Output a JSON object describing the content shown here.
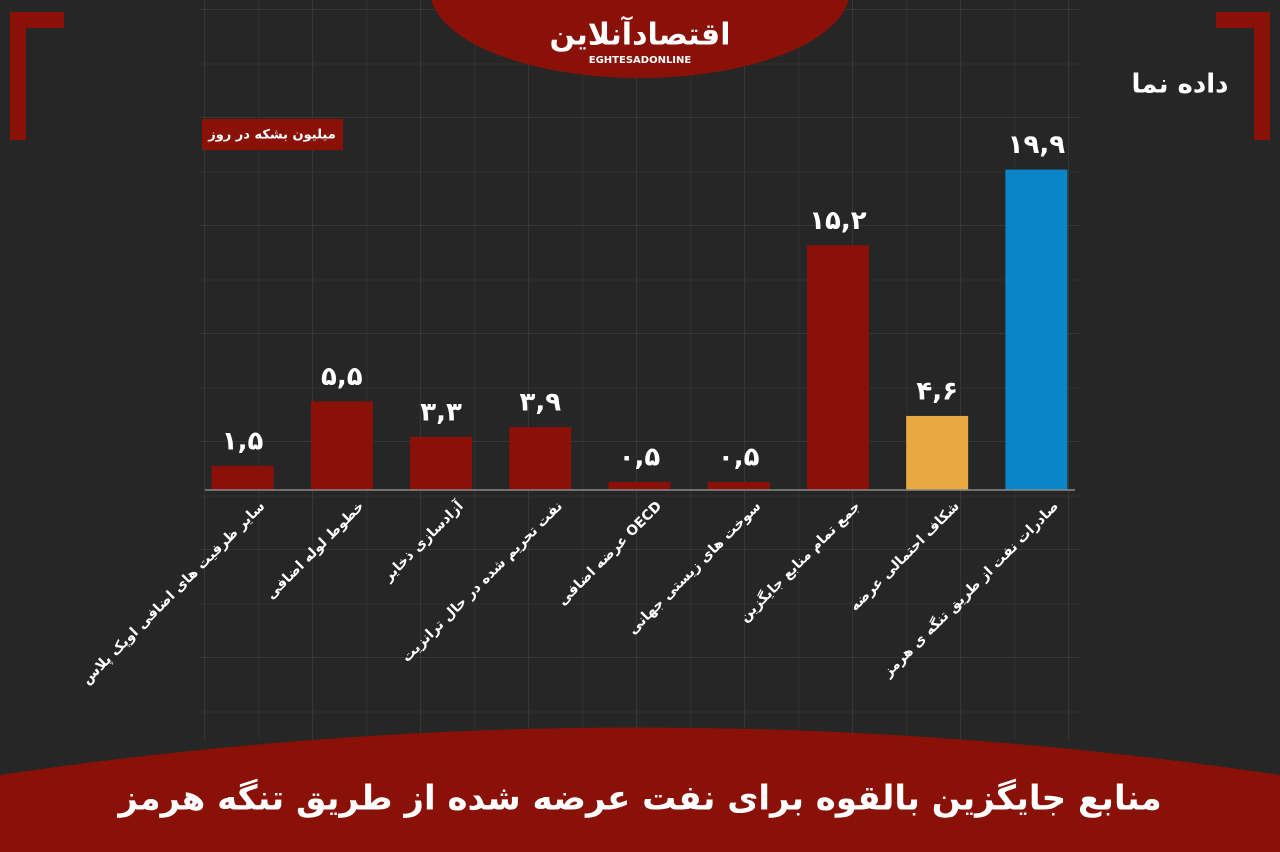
{
  "chart_data": {
    "type": "bar",
    "title": "منابع جایگزین بالقوه برای نفت عرضه شده از طریق تنگه هرمز",
    "unit_label": "میلیون بشکه در روز",
    "logo": "اقتصادآنلاین",
    "logo_subtitle": "EGHTESADONLINE",
    "brand": "داده نما",
    "categories": [
      "سایر ظرفیت های اضافی اوپک پلاس",
      "خطوط لوله اضافی",
      "آزادسازی ذخایر",
      "نفت تحریم شده در حال ترانزیت",
      "عرضه اضافی OECD",
      "سوخت های زیستی جهانی",
      "جمع تمام منابع جایگزین",
      "شکاف احتمالی عرضه",
      "صادرات نفت از طریق تنگه ی هرمز"
    ],
    "values": [
      1.5,
      5.5,
      3.3,
      3.9,
      0.5,
      0.5,
      15.2,
      4.6,
      19.9
    ],
    "value_labels": [
      "۱,۵",
      "۵,۵",
      "۳,۳",
      "۳,۹",
      "۰,۵",
      "۰,۵",
      "۱۵,۲",
      "۴,۶",
      "۱۹,۹"
    ],
    "colors": [
      "#8a1108",
      "#8a1108",
      "#8a1108",
      "#8a1108",
      "#8a1108",
      "#8a1108",
      "#8a1108",
      "#e8a842",
      "#0a86c8"
    ],
    "ylim": [
      0,
      20
    ]
  }
}
